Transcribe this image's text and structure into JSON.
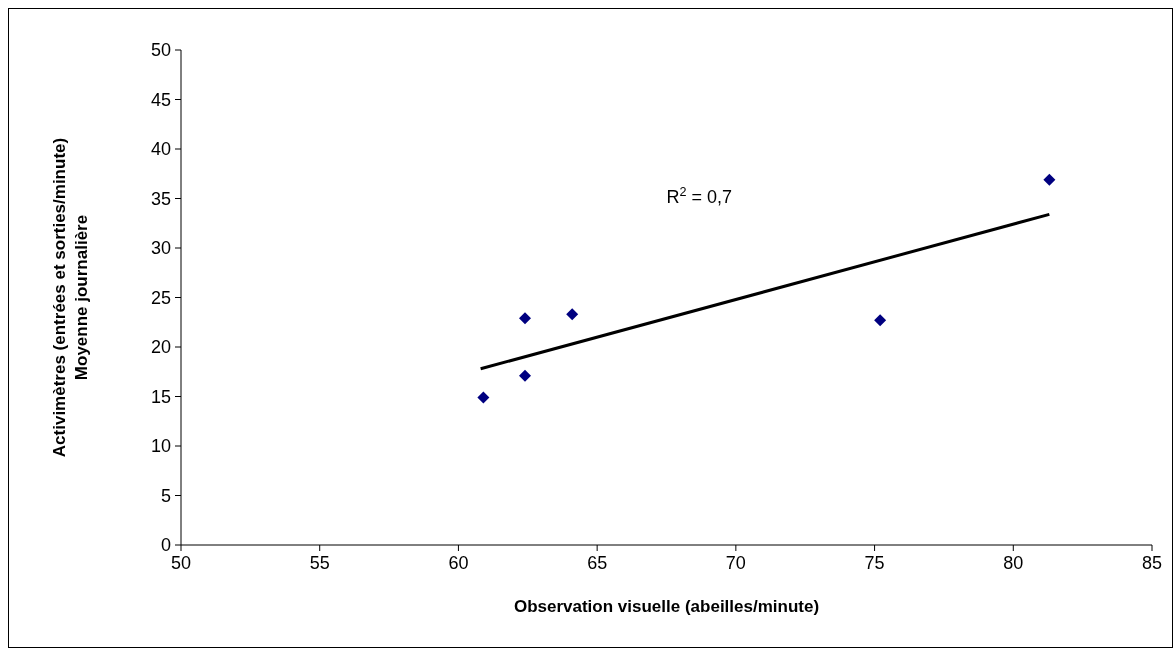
{
  "chart_data": {
    "type": "scatter",
    "xlabel": "Observation visuelle (abeilles/minute)",
    "ylabel": "Activimètres (entrées et sorties/minute)\nMoyenne journalière",
    "annotations": [
      "R$^{2}$ = 0,7"
    ],
    "xlim": [
      50,
      85
    ],
    "xticks": [
      50,
      55,
      60,
      65,
      70,
      75,
      80,
      85
    ],
    "ylim": [
      0,
      50
    ],
    "yticks": [
      0,
      5,
      10,
      15,
      20,
      25,
      30,
      35,
      40,
      45,
      50
    ],
    "grid": false,
    "series": [
      {
        "color": "#000080",
        "marker": "diamond",
        "x": [
          60.9,
          62.4,
          62.4,
          64.1,
          75.2,
          81.3
        ],
        "values": [
          14.9,
          17.1,
          22.9,
          23.3,
          22.7,
          36.9
        ]
      },
      {
        "type": "line",
        "color": "#000000",
        "marker": "none",
        "line_style": "solid",
        "x": [
          60.8,
          81.3
        ],
        "values": [
          17.8,
          33.4
        ]
      }
    ]
  }
}
